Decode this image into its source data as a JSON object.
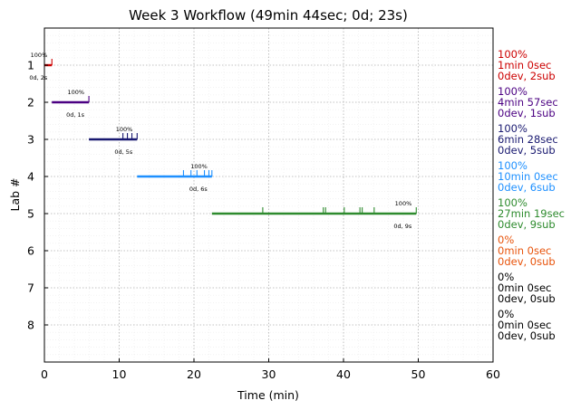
{
  "chart_data": {
    "type": "timeline",
    "title": "Week 3 Workflow (49min 44sec; 0d; 23s)",
    "xlabel": "Time (min)",
    "ylabel": "Lab #",
    "xlim": [
      0,
      60
    ],
    "ylim": [
      0,
      9
    ],
    "x_ticks": [
      "0",
      "10",
      "20",
      "30",
      "40",
      "50",
      "60"
    ],
    "y_ticks": [
      "1",
      "2",
      "3",
      "4",
      "5",
      "6",
      "7",
      "8"
    ],
    "grid": true,
    "labs": [
      {
        "lab": 1,
        "start": 0.0,
        "end": 1.0,
        "submissions": [
          1.0
        ],
        "pct_label": "100%",
        "count_label": "0d, 2s",
        "summary": [
          "100%",
          "1min 0sec",
          "0dev, 2sub"
        ],
        "color": "#cc0000"
      },
      {
        "lab": 2,
        "start": 1.0,
        "end": 5.95,
        "submissions": [
          5.95
        ],
        "pct_label": "100%",
        "count_label": "0d, 1s",
        "summary": [
          "100%",
          "4min 57sec",
          "0dev, 1sub"
        ],
        "color": "#4b0082"
      },
      {
        "lab": 3,
        "start": 5.95,
        "end": 12.4,
        "submissions": [
          10.5,
          11.1,
          11.7,
          12.4
        ],
        "pct_label": "100%",
        "count_label": "0d, 5s",
        "summary": [
          "100%",
          "6min 28sec",
          "0dev, 5sub"
        ],
        "color": "#191970"
      },
      {
        "lab": 4,
        "start": 12.4,
        "end": 22.4,
        "submissions": [
          18.6,
          19.6,
          20.4,
          21.4,
          22.0,
          22.4
        ],
        "pct_label": "100%",
        "count_label": "0d, 6s",
        "summary": [
          "100%",
          "10min 0sec",
          "0dev, 6sub"
        ],
        "color": "#1e90ff"
      },
      {
        "lab": 5,
        "start": 22.4,
        "end": 49.73,
        "submissions": [
          29.2,
          37.3,
          37.6,
          40.1,
          42.2,
          42.5,
          44.1,
          49.73
        ],
        "pct_label": "100%",
        "count_label": "0d, 9s",
        "summary": [
          "100%",
          "27min 19sec",
          "0dev, 9sub"
        ],
        "color": "#2e8b2e"
      },
      {
        "lab": 6,
        "start": null,
        "end": null,
        "submissions": [],
        "pct_label": "",
        "count_label": "",
        "summary": [
          "0%",
          "0min 0sec",
          "0dev, 0sub"
        ],
        "color": "#e8540c"
      },
      {
        "lab": 7,
        "start": null,
        "end": null,
        "submissions": [],
        "pct_label": "",
        "count_label": "",
        "summary": [
          "0%",
          "0min 0sec",
          "0dev, 0sub"
        ],
        "color": "#000000"
      },
      {
        "lab": 8,
        "start": null,
        "end": null,
        "submissions": [],
        "pct_label": "",
        "count_label": "",
        "summary": [
          "0%",
          "0min 0sec",
          "0dev, 0sub"
        ],
        "color": "#000000"
      }
    ]
  }
}
